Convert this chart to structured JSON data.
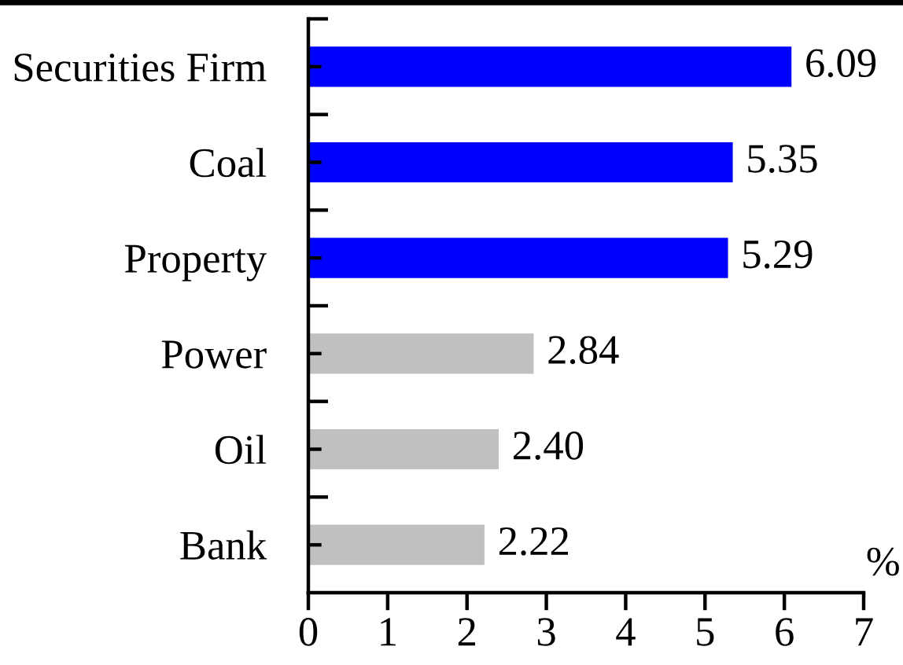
{
  "chart_data": {
    "type": "bar",
    "orientation": "horizontal",
    "categories": [
      "Securities Firm",
      "Coal",
      "Property",
      "Power",
      "Oil",
      "Bank"
    ],
    "values": [
      6.09,
      5.35,
      5.29,
      2.84,
      2.4,
      2.22
    ],
    "value_labels": [
      "6.09",
      "5.35",
      "5.29",
      "2.84",
      "2.40",
      "2.22"
    ],
    "colors": [
      "#0000ff",
      "#0000ff",
      "#0000ff",
      "#c0c0c0",
      "#c0c0c0",
      "#c0c0c0"
    ],
    "xlabel": "%",
    "xlim": [
      0,
      7
    ],
    "xticks": [
      0,
      1,
      2,
      3,
      4,
      5,
      6,
      7
    ]
  }
}
